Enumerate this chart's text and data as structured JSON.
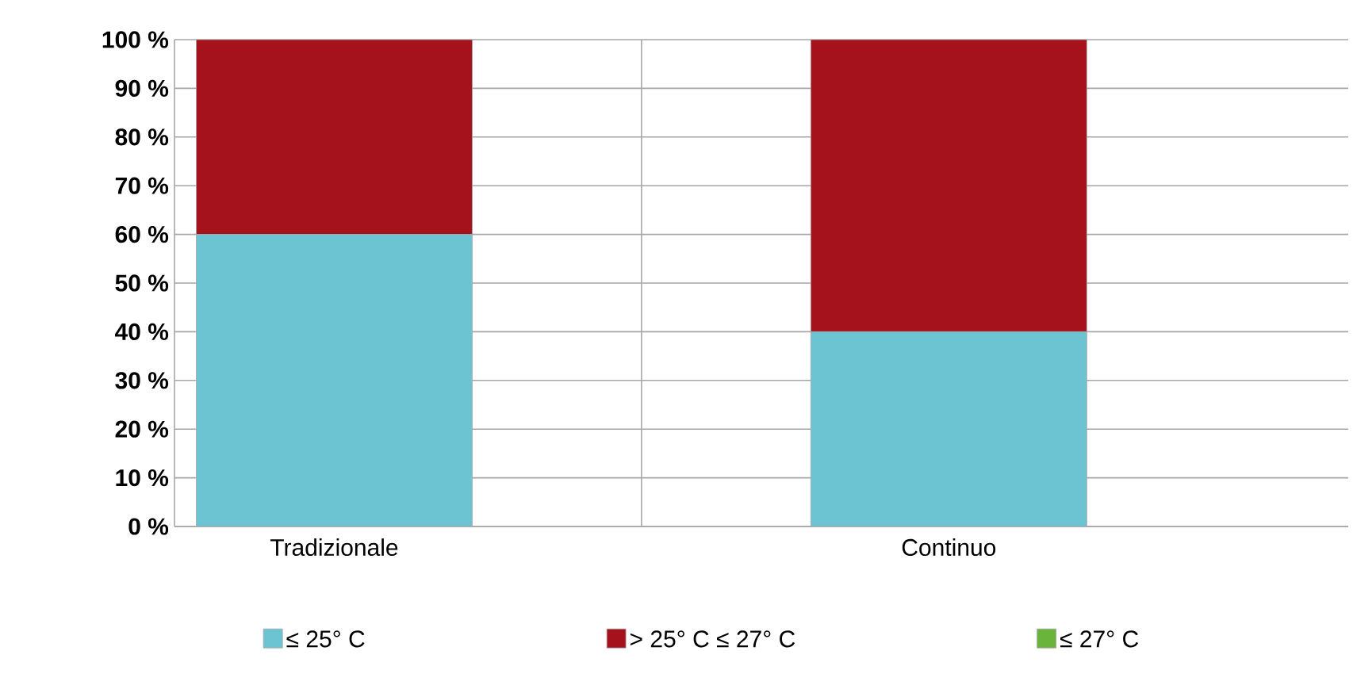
{
  "chart_data": {
    "type": "bar",
    "stacked": true,
    "categories": [
      "Tradizionale",
      "Continuo"
    ],
    "series": [
      {
        "name": "≤ 25° C",
        "color": "#6cc4d2",
        "values": [
          60,
          40
        ]
      },
      {
        "name": "> 25° C ≤ 27° C",
        "color": "#a5121c",
        "values": [
          40,
          60
        ]
      },
      {
        "name": "≤ 27° C",
        "color": "#6ab43c",
        "values": [
          null,
          null
        ]
      }
    ],
    "ylim": [
      0,
      100
    ],
    "yticks": [
      {
        "value": 0,
        "label": "0 %"
      },
      {
        "value": 10,
        "label": "10 %"
      },
      {
        "value": 20,
        "label": "20 %"
      },
      {
        "value": 30,
        "label": "30 %"
      },
      {
        "value": 40,
        "label": "40 %"
      },
      {
        "value": 50,
        "label": "50 %"
      },
      {
        "value": 60,
        "label": "60 %"
      },
      {
        "value": 70,
        "label": "70 %"
      },
      {
        "value": 80,
        "label": "80 %"
      },
      {
        "value": 90,
        "label": "90 %"
      },
      {
        "value": 100,
        "label": "100 %"
      }
    ],
    "grid": true,
    "legend": "bottom"
  }
}
